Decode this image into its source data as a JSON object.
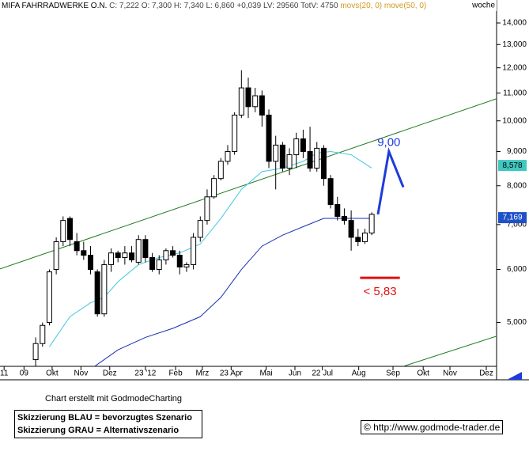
{
  "chart_data": {
    "type": "candlestick",
    "title": "MIFA FAHRRADWERKE O.N.",
    "quote": "C: 7,222 O: 7,300 H: 7,340 L: 6,860 +0,039 LV: 29560 TotV: 4750",
    "period": "woche",
    "log_scale": true,
    "legend_color": "#d09a20",
    "xlim": [
      -5.2,
      67.2
    ],
    "xticks": [
      {
        "value": -4.6,
        "label": "11"
      },
      {
        "value": -1.7,
        "label": "09"
      },
      {
        "value": 2.4,
        "label": "Okt"
      },
      {
        "value": 6.6,
        "label": "Nov"
      },
      {
        "value": 10.8,
        "label": "Dez"
      },
      {
        "value": 16.0,
        "label": "23 '12"
      },
      {
        "value": 20.4,
        "label": "Feb"
      },
      {
        "value": 24.3,
        "label": "Mrz"
      },
      {
        "value": 28.5,
        "label": "23 Apr"
      },
      {
        "value": 33.6,
        "label": "Mai"
      },
      {
        "value": 37.8,
        "label": "Jun"
      },
      {
        "value": 41.8,
        "label": "22 Jul"
      },
      {
        "value": 47.1,
        "label": "Aug"
      },
      {
        "value": 52.1,
        "label": "Sep"
      },
      {
        "value": 56.5,
        "label": "Okt"
      },
      {
        "value": 60.4,
        "label": "Nov"
      },
      {
        "value": 65.7,
        "label": "Dez"
      }
    ],
    "ylim": [
      4300,
      15150
    ],
    "yticks": [
      {
        "value": 5000,
        "label": "5,000"
      },
      {
        "value": 6000,
        "label": "6,000"
      },
      {
        "value": 7000,
        "label": "7,000"
      },
      {
        "value": 8000,
        "label": "8,000"
      },
      {
        "value": 9000,
        "label": "9,000"
      },
      {
        "value": 10000,
        "label": "10,000"
      },
      {
        "value": 11000,
        "label": "11,000"
      },
      {
        "value": 12000,
        "label": "12,000"
      },
      {
        "value": 13000,
        "label": "13,000"
      },
      {
        "value": 14000,
        "label": "14,000"
      }
    ],
    "x": [
      0,
      1,
      2,
      3,
      4,
      5,
      6,
      7,
      8,
      9,
      10,
      11,
      12,
      13,
      14,
      15,
      16,
      17,
      18,
      19,
      20,
      21,
      22,
      23,
      24,
      25,
      26,
      27,
      28,
      29,
      30,
      31,
      32,
      33,
      34,
      35,
      36,
      37,
      38,
      39,
      40,
      41,
      42,
      43,
      44,
      45,
      46,
      47,
      48,
      49
    ],
    "open": [
      4400,
      4650,
      5000,
      6000,
      6600,
      7150,
      6600,
      6400,
      6300,
      5950,
      5150,
      6100,
      6350,
      6250,
      6350,
      6150,
      6650,
      6250,
      6000,
      6200,
      6400,
      6300,
      6050,
      6100,
      6700,
      7100,
      7700,
      8200,
      8700,
      9000,
      10200,
      11200,
      10500,
      10900,
      10200,
      8700,
      9200,
      8500,
      8900,
      9400,
      9000,
      8500,
      9100,
      8200,
      7500,
      7200,
      7100,
      6700,
      6600,
      6800
    ],
    "high": [
      4750,
      5000,
      6000,
      6700,
      7200,
      7200,
      6800,
      6600,
      6500,
      6000,
      6200,
      6450,
      6400,
      6500,
      6500,
      6750,
      6750,
      6350,
      6300,
      6450,
      6500,
      6400,
      6150,
      6800,
      7200,
      7900,
      8300,
      8800,
      9200,
      10300,
      11900,
      11600,
      11200,
      11100,
      10400,
      9500,
      9300,
      9100,
      9600,
      9700,
      9800,
      9300,
      9200,
      8300,
      7700,
      7400,
      7350,
      6900,
      6900,
      7300
    ],
    "low": [
      4300,
      4600,
      4950,
      5900,
      6500,
      6500,
      6300,
      6200,
      5900,
      5100,
      5100,
      5950,
      6150,
      6100,
      6150,
      6100,
      6150,
      5950,
      5900,
      6100,
      6250,
      5900,
      5950,
      6000,
      6600,
      7000,
      7650,
      8150,
      8600,
      8900,
      10100,
      10100,
      10300,
      9800,
      8500,
      7900,
      8400,
      8300,
      8500,
      8800,
      8400,
      8400,
      8000,
      7400,
      7100,
      7000,
      6400,
      6500,
      6550,
      6750
    ],
    "close": [
      4650,
      4950,
      5950,
      6600,
      7100,
      6650,
      6400,
      6300,
      6000,
      5150,
      6100,
      6350,
      6250,
      6350,
      6200,
      6650,
      6250,
      6000,
      6200,
      6400,
      6300,
      6050,
      6100,
      6700,
      7100,
      7700,
      8200,
      8700,
      9000,
      10200,
      11200,
      10500,
      10900,
      10200,
      8700,
      9200,
      8500,
      8900,
      9400,
      9000,
      8500,
      9100,
      8200,
      7500,
      7200,
      7100,
      6700,
      6600,
      6800,
      7250
    ],
    "series": [
      {
        "name": "movs(20, 0)",
        "color": "#40c8e0",
        "x": [
          2,
          5,
          8,
          10,
          12,
          15,
          18,
          21,
          24,
          27,
          30,
          33,
          36,
          39,
          41,
          43,
          46,
          49
        ],
        "values": [
          4600,
          5100,
          5350,
          5450,
          5750,
          6100,
          6250,
          6350,
          6550,
          7150,
          7900,
          8400,
          8500,
          8700,
          8950,
          9000,
          8900,
          8500
        ]
      },
      {
        "name": "move(50, 0)",
        "color": "#1a2eb0",
        "x": [
          8.6,
          12,
          16,
          20,
          24,
          27,
          30,
          33,
          36,
          39,
          42,
          45,
          49
        ],
        "values": [
          4300,
          4550,
          4750,
          4900,
          5100,
          5450,
          6000,
          6500,
          6750,
          6950,
          7150,
          7150,
          7150
        ]
      }
    ],
    "trendlines": [
      {
        "color": "#1f7a1f",
        "x": [
          -5.2,
          67.2
        ],
        "values": [
          6010,
          10790
        ]
      },
      {
        "color": "#1f7a1f",
        "x": [
          53.6,
          67.2
        ],
        "values": [
          4300,
          4770
        ]
      }
    ],
    "scenarios": [
      {
        "color": "#1e3cd8",
        "x": [
          49.9,
          51.5,
          53.6
        ],
        "values": [
          7250,
          9000,
          7960
        ],
        "label": "9,00"
      },
      {
        "color": "#e01010",
        "x": [
          47.3,
          53.1
        ],
        "values": [
          5830,
          5830
        ],
        "label": "< 5,83"
      }
    ],
    "value_boxes": [
      {
        "value": 8578,
        "label": "8,578",
        "color": "#40c8c0",
        "text_color": "#000"
      },
      {
        "value": 7169,
        "label": "7,169",
        "color": "#1e50c8",
        "text_color": "#fff"
      }
    ],
    "credit": "Chart erstellt mit GodmodeCharting",
    "notes": [
      "Skizzierung BLAU = bevorzugtes Szenario",
      "Skizzierung GRAU = Alternativszenario"
    ],
    "url": "© http://www.godmode-trader.de"
  }
}
